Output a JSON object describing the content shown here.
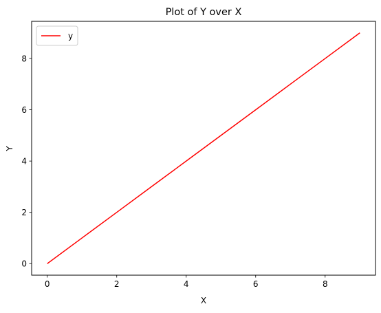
{
  "chart_data": {
    "type": "line",
    "title": "Plot of Y over X",
    "xlabel": "X",
    "ylabel": "Y",
    "x": [
      0,
      1,
      2,
      3,
      4,
      5,
      6,
      7,
      8,
      9
    ],
    "series": [
      {
        "name": "y",
        "values": [
          0,
          1,
          2,
          3,
          4,
          5,
          6,
          7,
          8,
          9
        ],
        "color": "#ff0000"
      }
    ],
    "xlim": [
      -0.45,
      9.45
    ],
    "ylim": [
      -0.45,
      9.45
    ],
    "xticks": [
      0,
      2,
      4,
      6,
      8
    ],
    "yticks": [
      0,
      2,
      4,
      6,
      8
    ],
    "grid": false,
    "legend": {
      "position": "upper-left",
      "entries": [
        "y"
      ]
    }
  }
}
